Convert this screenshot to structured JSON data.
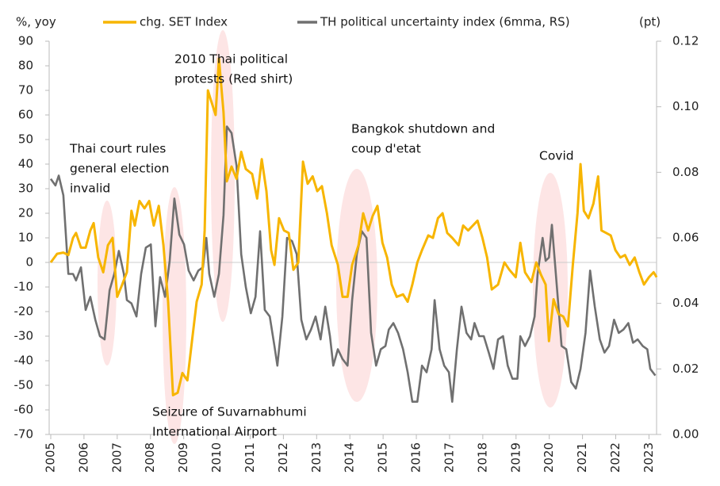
{
  "chart_data": {
    "type": "line",
    "y_label": "%, yoy",
    "y2_label": "(pt)",
    "xlim": [
      2005,
      2023.3
    ],
    "xticks": [
      2005,
      2006,
      2007,
      2008,
      2009,
      2010,
      2011,
      2012,
      2013,
      2014,
      2015,
      2016,
      2017,
      2018,
      2019,
      2020,
      2021,
      2022,
      2023
    ],
    "ylim": [
      -70,
      90
    ],
    "yticks": [
      -70,
      -60,
      -50,
      -40,
      -30,
      -20,
      -10,
      0,
      10,
      20,
      30,
      40,
      50,
      60,
      70,
      80,
      90
    ],
    "y2lim": [
      0,
      0.12
    ],
    "y2ticks": [
      {
        "value": 0,
        "label": "0.00"
      },
      0.02,
      0.04,
      0.06,
      0.08,
      {
        "value": 0.1,
        "label": "0.10"
      },
      0.12
    ],
    "annotations": [
      {
        "lines": [
          "Thai court rules",
          "general election",
          "invalid"
        ]
      },
      {
        "lines": [
          "2010 Thai political",
          "protests (Red shirt)"
        ]
      },
      {
        "lines": [
          "Bangkok shutdown and",
          "coup d'etat"
        ]
      },
      {
        "lines": [
          "Covid"
        ]
      },
      {
        "lines": [
          "Seizure of Suvarnabhumi",
          "International Airport"
        ]
      }
    ],
    "series": [
      {
        "name": "chg. SET Index",
        "color": "#f7b500",
        "axis": "y",
        "x": [
          2005.0,
          2005.19,
          2005.38,
          2005.53,
          2005.67,
          2005.76,
          2005.91,
          2006.05,
          2006.19,
          2006.29,
          2006.43,
          2006.58,
          2006.72,
          2006.86,
          2007.0,
          2007.15,
          2007.29,
          2007.43,
          2007.53,
          2007.67,
          2007.82,
          2007.96,
          2008.1,
          2008.25,
          2008.39,
          2008.53,
          2008.68,
          2008.82,
          2008.96,
          2009.11,
          2009.25,
          2009.39,
          2009.54,
          2009.63,
          2009.73,
          2009.82,
          2009.96,
          2010.06,
          2010.2,
          2010.3,
          2010.44,
          2010.59,
          2010.73,
          2010.87,
          2011.06,
          2011.21,
          2011.35,
          2011.49,
          2011.63,
          2011.73,
          2011.87,
          2012.02,
          2012.16,
          2012.3,
          2012.45,
          2012.59,
          2012.73,
          2012.88,
          2013.02,
          2013.16,
          2013.31,
          2013.45,
          2013.64,
          2013.78,
          2013.93,
          2014.07,
          2014.26,
          2014.4,
          2014.55,
          2014.69,
          2014.83,
          2014.98,
          2015.12,
          2015.26,
          2015.41,
          2015.6,
          2015.74,
          2015.88,
          2016.03,
          2016.17,
          2016.36,
          2016.5,
          2016.65,
          2016.79,
          2016.93,
          2017.08,
          2017.27,
          2017.41,
          2017.56,
          2017.7,
          2017.84,
          2017.99,
          2018.13,
          2018.27,
          2018.46,
          2018.65,
          2018.8,
          2018.99,
          2019.13,
          2019.27,
          2019.46,
          2019.61,
          2019.75,
          2019.89,
          2019.99,
          2020.13,
          2020.28,
          2020.42,
          2020.56,
          2020.71,
          2020.85,
          2020.94,
          2021.04,
          2021.18,
          2021.33,
          2021.47,
          2021.57,
          2021.71,
          2021.85,
          2021.99,
          2022.14,
          2022.28,
          2022.42,
          2022.57,
          2022.71,
          2022.85,
          2023.0,
          2023.14,
          2023.23
        ],
        "values": [
          0,
          3.5,
          4,
          3,
          10,
          12,
          6,
          6,
          13,
          16,
          2,
          -4,
          7,
          10,
          -14,
          -9,
          -4,
          21,
          15,
          25,
          22,
          25,
          15,
          23,
          7,
          -16,
          -54,
          -53,
          -45,
          -48,
          -32,
          -16,
          -9,
          13,
          70,
          66,
          60,
          83,
          61,
          33,
          39,
          34,
          45,
          38,
          36,
          26,
          42,
          29,
          5,
          -1,
          18,
          13,
          12,
          -3,
          0,
          41,
          32,
          35,
          29,
          31,
          20,
          7,
          -1,
          -14,
          -14,
          -1,
          7,
          20,
          13,
          19,
          23,
          8,
          2,
          -9,
          -14,
          -13,
          -16,
          -9,
          0,
          5,
          11,
          10,
          18,
          20,
          12,
          10,
          7,
          15,
          13,
          15,
          17,
          10,
          2,
          -11,
          -9,
          0,
          -3,
          -6,
          8,
          -4,
          -8,
          0,
          -5,
          -9,
          -32,
          -15,
          -21,
          -22,
          -26,
          -1,
          20,
          40,
          21,
          18,
          24,
          35,
          13,
          12,
          11,
          5,
          2,
          3,
          -1,
          2,
          -4,
          -9,
          -6,
          -4,
          -6
        ]
      },
      {
        "name": "TH political uncertainty index (6mma, RS)",
        "color": "#707070",
        "axis": "y2",
        "x": [
          2005.0,
          2005.14,
          2005.24,
          2005.38,
          2005.53,
          2005.67,
          2005.76,
          2005.91,
          2006.05,
          2006.19,
          2006.34,
          2006.48,
          2006.62,
          2006.77,
          2006.91,
          2007.05,
          2007.2,
          2007.29,
          2007.43,
          2007.58,
          2007.72,
          2007.86,
          2008.01,
          2008.15,
          2008.29,
          2008.44,
          2008.58,
          2008.72,
          2008.87,
          2009.01,
          2009.15,
          2009.3,
          2009.44,
          2009.58,
          2009.68,
          2009.77,
          2009.92,
          2010.06,
          2010.2,
          2010.3,
          2010.44,
          2010.59,
          2010.73,
          2010.87,
          2011.02,
          2011.16,
          2011.3,
          2011.44,
          2011.59,
          2011.73,
          2011.82,
          2011.97,
          2012.11,
          2012.26,
          2012.4,
          2012.54,
          2012.69,
          2012.83,
          2012.97,
          2013.12,
          2013.26,
          2013.4,
          2013.5,
          2013.64,
          2013.78,
          2013.93,
          2014.07,
          2014.21,
          2014.36,
          2014.5,
          2014.64,
          2014.79,
          2014.93,
          2015.07,
          2015.17,
          2015.31,
          2015.45,
          2015.6,
          2015.74,
          2015.88,
          2016.03,
          2016.17,
          2016.31,
          2016.46,
          2016.55,
          2016.7,
          2016.84,
          2016.98,
          2017.08,
          2017.22,
          2017.36,
          2017.51,
          2017.65,
          2017.75,
          2017.89,
          2018.03,
          2018.18,
          2018.32,
          2018.46,
          2018.61,
          2018.75,
          2018.89,
          2019.04,
          2019.13,
          2019.27,
          2019.42,
          2019.56,
          2019.65,
          2019.8,
          2019.89,
          2019.99,
          2020.08,
          2020.23,
          2020.37,
          2020.51,
          2020.66,
          2020.8,
          2020.94,
          2021.09,
          2021.23,
          2021.37,
          2021.52,
          2021.66,
          2021.8,
          2021.95,
          2022.09,
          2022.23,
          2022.38,
          2022.52,
          2022.66,
          2022.81,
          2022.95,
          2023.04,
          2023.19
        ],
        "values": [
          0.078,
          0.076,
          0.079,
          0.073,
          0.049,
          0.049,
          0.047,
          0.051,
          0.038,
          0.042,
          0.035,
          0.03,
          0.029,
          0.044,
          0.049,
          0.056,
          0.049,
          0.041,
          0.04,
          0.036,
          0.049,
          0.057,
          0.058,
          0.033,
          0.048,
          0.042,
          0.053,
          0.072,
          0.061,
          0.058,
          0.05,
          0.047,
          0.05,
          0.051,
          0.06,
          0.049,
          0.042,
          0.049,
          0.067,
          0.094,
          0.092,
          0.082,
          0.055,
          0.045,
          0.037,
          0.042,
          0.062,
          0.038,
          0.036,
          0.027,
          0.021,
          0.036,
          0.06,
          0.059,
          0.055,
          0.035,
          0.029,
          0.032,
          0.036,
          0.029,
          0.039,
          0.03,
          0.021,
          0.026,
          0.023,
          0.021,
          0.041,
          0.055,
          0.062,
          0.06,
          0.031,
          0.021,
          0.026,
          0.027,
          0.032,
          0.034,
          0.031,
          0.026,
          0.019,
          0.01,
          0.01,
          0.021,
          0.019,
          0.026,
          0.041,
          0.026,
          0.021,
          0.019,
          0.01,
          0.026,
          0.039,
          0.031,
          0.029,
          0.034,
          0.03,
          0.03,
          0.025,
          0.02,
          0.029,
          0.03,
          0.021,
          0.017,
          0.017,
          0.03,
          0.027,
          0.03,
          0.036,
          0.049,
          0.06,
          0.053,
          0.054,
          0.064,
          0.045,
          0.027,
          0.026,
          0.016,
          0.014,
          0.02,
          0.031,
          0.05,
          0.039,
          0.029,
          0.025,
          0.027,
          0.035,
          0.031,
          0.032,
          0.034,
          0.028,
          0.029,
          0.027,
          0.026,
          0.02,
          0.018
        ]
      }
    ]
  }
}
